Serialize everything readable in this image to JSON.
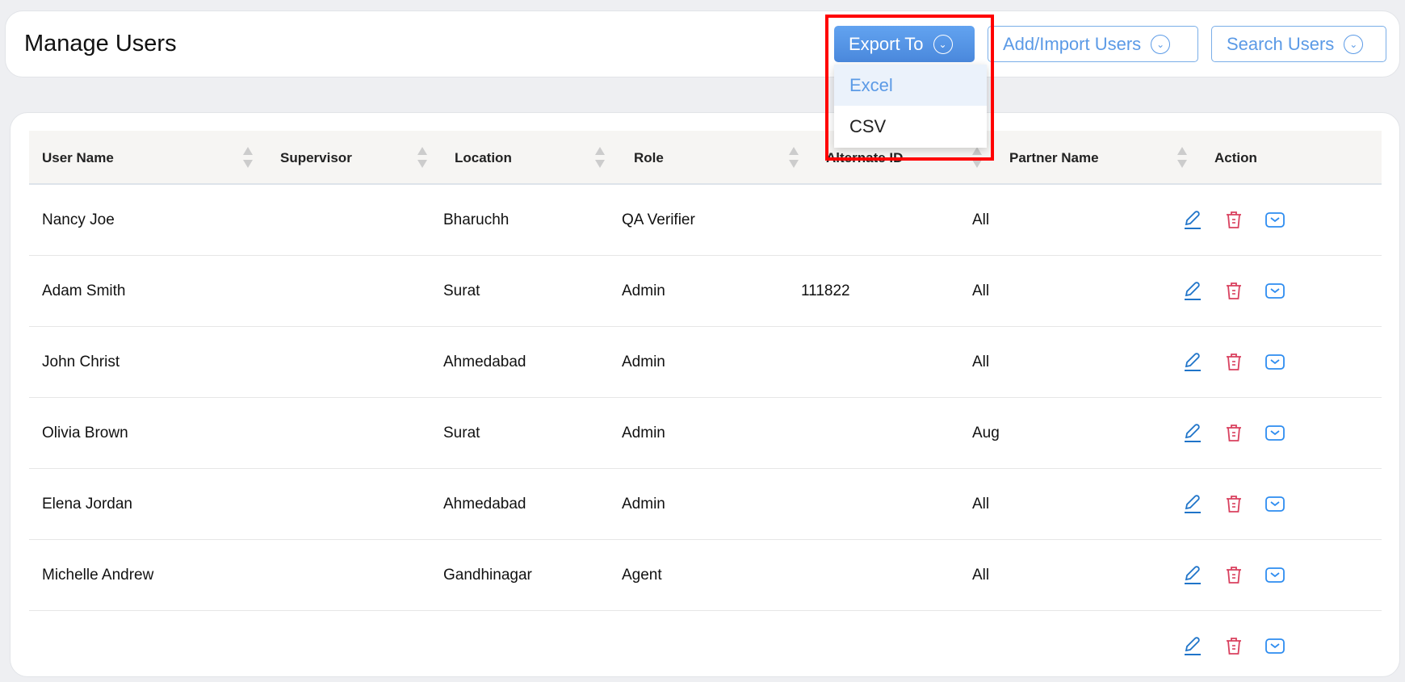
{
  "header": {
    "title": "Manage Users",
    "export_label": "Export To",
    "add_label": "Add/Import Users",
    "search_label": "Search Users"
  },
  "export_menu": {
    "items": [
      "Excel",
      "CSV"
    ],
    "active": "Excel"
  },
  "table": {
    "columns": [
      "User Name",
      "Supervisor",
      "Location",
      "Role",
      "Alternate ID",
      "Partner Name",
      "Action"
    ],
    "rows": [
      {
        "name": "Nancy Joe",
        "supervisor": "",
        "location": "Bharuchh",
        "role": "QA Verifier",
        "alt_id": "",
        "partner": "All"
      },
      {
        "name": "Adam Smith",
        "supervisor": "",
        "location": "Surat",
        "role": "Admin",
        "alt_id": "111822",
        "partner": "All"
      },
      {
        "name": "John Christ",
        "supervisor": "",
        "location": "Ahmedabad",
        "role": "Admin",
        "alt_id": "",
        "partner": "All"
      },
      {
        "name": "Olivia Brown",
        "supervisor": "",
        "location": "Surat",
        "role": "Admin",
        "alt_id": "",
        "partner": "Aug"
      },
      {
        "name": "Elena Jordan",
        "supervisor": "",
        "location": "Ahmedabad",
        "role": "Admin",
        "alt_id": "",
        "partner": "All"
      },
      {
        "name": "Michelle Andrew",
        "supervisor": "",
        "location": "Gandhinagar",
        "role": "Agent",
        "alt_id": "",
        "partner": "All"
      }
    ],
    "action_icons": [
      "edit-icon",
      "delete-icon",
      "email-icon"
    ]
  },
  "colors": {
    "primary": "#4a88dc",
    "delete": "#d9415f",
    "edit": "#1f74c9",
    "email": "#2d8cf0",
    "highlight": "#ff0000"
  }
}
